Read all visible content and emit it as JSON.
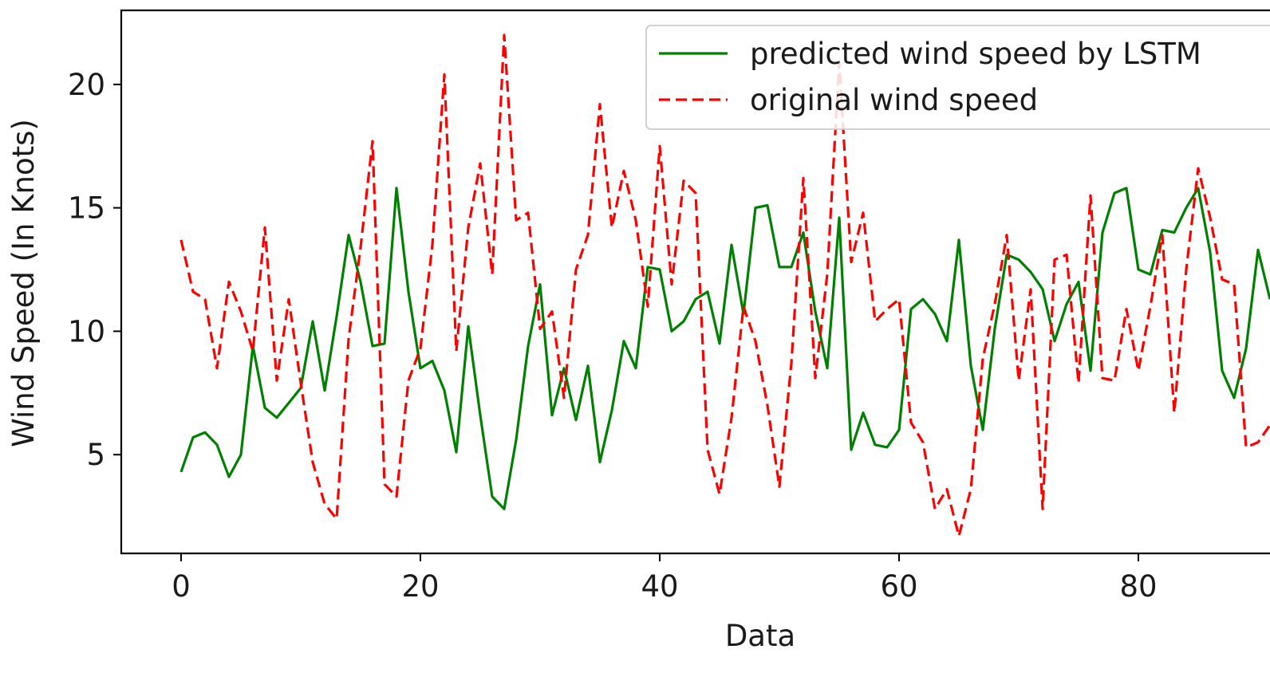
{
  "chart_data": {
    "type": "line",
    "title": "",
    "xlabel": "Data",
    "ylabel": "Wind Speed (In Knots)",
    "xlim": [
      -5,
      91
    ],
    "ylim": [
      1,
      23
    ],
    "x_ticks": [
      0,
      20,
      40,
      60,
      80
    ],
    "x_tick_labels": [
      "0",
      "20",
      "40",
      "60",
      "80"
    ],
    "y_ticks": [
      5,
      10,
      15,
      20
    ],
    "y_tick_labels": [
      "5",
      "10",
      "15",
      "20"
    ],
    "grid": false,
    "legend_position": "top-right",
    "series": [
      {
        "name": "predicted wind speed by LSTM",
        "color": "#008000",
        "style": "solid",
        "x": [
          0,
          1,
          2,
          3,
          4,
          5,
          6,
          7,
          8,
          9,
          10,
          11,
          12,
          13,
          14,
          15,
          16,
          17,
          18,
          19,
          20,
          21,
          22,
          23,
          24,
          25,
          26,
          27,
          28,
          29,
          30,
          31,
          32,
          33,
          34,
          35,
          36,
          37,
          38,
          39,
          40,
          41,
          42,
          43,
          44,
          45,
          46,
          47,
          48,
          49,
          50,
          51,
          52,
          53,
          54,
          55,
          56,
          57,
          58,
          59,
          60,
          61,
          62,
          63,
          64,
          65,
          66,
          67,
          68,
          69,
          70,
          71,
          72,
          73,
          74,
          75,
          76,
          77,
          78,
          79,
          80,
          81,
          82,
          83,
          84,
          85,
          86,
          87,
          88,
          89,
          90,
          91
        ],
        "values": [
          4.3,
          5.7,
          5.9,
          5.4,
          4.1,
          5.0,
          9.4,
          6.9,
          6.5,
          7.1,
          7.7,
          10.4,
          7.6,
          10.6,
          13.9,
          12.0,
          9.4,
          9.5,
          15.8,
          11.6,
          8.5,
          8.8,
          7.6,
          5.1,
          10.2,
          6.6,
          3.3,
          2.8,
          5.6,
          9.4,
          11.9,
          6.6,
          8.5,
          6.4,
          8.6,
          4.7,
          6.8,
          9.6,
          8.5,
          12.6,
          12.5,
          10.0,
          10.4,
          11.3,
          11.6,
          9.5,
          13.5,
          10.7,
          15.0,
          15.1,
          12.6,
          12.6,
          14.0,
          10.8,
          8.5,
          14.6,
          5.2,
          6.7,
          5.4,
          5.3,
          6.0,
          10.9,
          11.3,
          10.7,
          9.6,
          13.7,
          8.6,
          6.0,
          10.1,
          13.1,
          12.9,
          12.4,
          11.7,
          9.6,
          11.1,
          12.0,
          8.4,
          14.0,
          15.6,
          15.8,
          12.5,
          12.3,
          14.1,
          14.0,
          15.0,
          15.8,
          13.2,
          8.4,
          7.3,
          9.3,
          13.3,
          11.3
        ]
      },
      {
        "name": "original wind speed",
        "color": "#ff0000",
        "style": "dashed",
        "x": [
          0,
          1,
          2,
          3,
          4,
          5,
          6,
          7,
          8,
          9,
          10,
          11,
          12,
          13,
          14,
          15,
          16,
          17,
          18,
          19,
          20,
          21,
          22,
          23,
          24,
          25,
          26,
          27,
          28,
          29,
          30,
          31,
          32,
          33,
          34,
          35,
          36,
          37,
          38,
          39,
          40,
          41,
          42,
          43,
          44,
          45,
          46,
          47,
          48,
          49,
          50,
          51,
          52,
          53,
          54,
          55,
          56,
          57,
          58,
          59,
          60,
          61,
          62,
          63,
          64,
          65,
          66,
          67,
          68,
          69,
          70,
          71,
          72,
          73,
          74,
          75,
          76,
          77,
          78,
          79,
          80,
          81,
          82,
          83,
          84,
          85,
          86,
          87,
          88,
          89,
          90,
          91
        ],
        "values": [
          13.7,
          11.6,
          11.3,
          8.5,
          12.0,
          10.8,
          9.2,
          14.2,
          8.0,
          11.3,
          7.9,
          4.7,
          3.0,
          2.4,
          9.7,
          13.4,
          17.7,
          3.8,
          3.3,
          8.0,
          9.3,
          13.5,
          20.4,
          9.2,
          14.2,
          16.8,
          12.3,
          22.0,
          14.5,
          14.8,
          10.1,
          10.8,
          7.3,
          12.5,
          13.9,
          19.2,
          14.2,
          16.5,
          14.5,
          11.0,
          17.5,
          11.9,
          16.1,
          15.6,
          5.2,
          3.4,
          6.5,
          11.0,
          9.6,
          7.0,
          3.7,
          8.7,
          16.2,
          8.1,
          12.3,
          20.9,
          12.8,
          14.8,
          10.4,
          10.9,
          11.3,
          6.3,
          5.5,
          2.8,
          3.6,
          1.7,
          3.6,
          8.9,
          11.1,
          13.9,
          8.0,
          11.7,
          2.8,
          12.9,
          13.1,
          7.9,
          15.5,
          8.1,
          8.0,
          10.9,
          8.4,
          11.0,
          13.9,
          6.7,
          12.5,
          16.6,
          14.6,
          12.1,
          11.9,
          5.3,
          5.5,
          6.2
        ]
      }
    ]
  }
}
